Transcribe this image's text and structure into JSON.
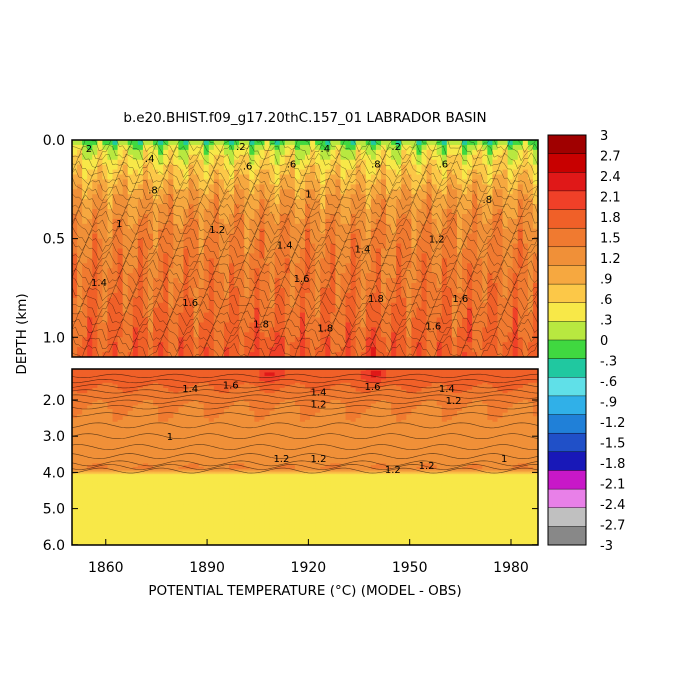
{
  "chart_data": {
    "type": "heatmap",
    "title": "b.e20.BHIST.f09_g17.20thC.157_01 LABRADOR BASIN",
    "xlabel": "POTENTIAL TEMPERATURE (°C) (MODEL - OBS)",
    "ylabel": "DEPTH (km)",
    "x_range": [
      1850,
      1988
    ],
    "x_ticks": [
      "1860",
      "1890",
      "1920",
      "1950",
      "1980"
    ],
    "x_tick_values": [
      1860,
      1890,
      1920,
      1950,
      1980
    ],
    "panels": [
      {
        "name": "upper",
        "y_range": [
          0.0,
          1.1
        ],
        "y_ticks": [
          "0.0",
          "0.5",
          "1.0"
        ],
        "y_tick_values": [
          0.0,
          0.5,
          1.0
        ]
      },
      {
        "name": "lower",
        "y_range": [
          1.1,
          6.0
        ],
        "y_ticks": [
          "2.0",
          "3.0",
          "4.0",
          "5.0",
          "6.0"
        ],
        "y_tick_values": [
          2.0,
          3.0,
          4.0,
          5.0,
          6.0
        ]
      }
    ],
    "colorbar": {
      "labels": [
        "3",
        "2.7",
        "2.4",
        "2.1",
        "1.8",
        "1.5",
        "1.2",
        ".9",
        ".6",
        ".3",
        "0",
        "-.3",
        "-.6",
        "-.9",
        "-1.2",
        "-1.5",
        "-1.8",
        "-2.1",
        "-2.4",
        "-2.7",
        "-3"
      ],
      "values": [
        3,
        2.7,
        2.4,
        2.1,
        1.8,
        1.5,
        1.2,
        0.9,
        0.6,
        0.3,
        0,
        -0.3,
        -0.6,
        -0.9,
        -1.2,
        -1.5,
        -1.8,
        -2.1,
        -2.4,
        -2.7,
        -3
      ],
      "colors": [
        "#a00000",
        "#c80000",
        "#e01818",
        "#f04028",
        "#f06028",
        "#f07a30",
        "#f09038",
        "#f6a840",
        "#fcc848",
        "#f8e848",
        "#b8e840",
        "#40d840",
        "#20c8a0",
        "#60e0e8",
        "#30b0e8",
        "#2080d8",
        "#2050c8",
        "#1818b8",
        "#c818c8",
        "#e880e8",
        "#c0c0c0",
        "#888888"
      ]
    },
    "depth_profile": {
      "depths": [
        0.0,
        0.05,
        0.15,
        0.3,
        0.5,
        0.8,
        1.05,
        1.2,
        1.5,
        1.8,
        2.2,
        3.0,
        3.6,
        3.9,
        4.05,
        5.4
      ],
      "values": [
        -0.5,
        0.0,
        0.4,
        0.9,
        1.2,
        1.4,
        1.6,
        1.7,
        1.6,
        1.4,
        1.2,
        1.0,
        1.0,
        1.2,
        0.2,
        0.2
      ]
    },
    "warm_events": [
      {
        "year": 1908,
        "depth": 1.25,
        "value": 2.1
      },
      {
        "year": 1940,
        "depth": 1.25,
        "value": 2.1
      }
    ],
    "contour_labels": [
      {
        "text": "2",
        "x": 1855,
        "y": 0.04
      },
      {
        "text": ".2",
        "x": 1900,
        "y": 0.03
      },
      {
        "text": ".4",
        "x": 1925,
        "y": 0.04
      },
      {
        "text": ".2",
        "x": 1946,
        "y": 0.03
      },
      {
        "text": ".4",
        "x": 1873,
        "y": 0.09
      },
      {
        "text": ".6",
        "x": 1902,
        "y": 0.13
      },
      {
        "text": ".6",
        "x": 1915,
        "y": 0.12
      },
      {
        "text": ".8",
        "x": 1940,
        "y": 0.12
      },
      {
        "text": ".6",
        "x": 1960,
        "y": 0.12
      },
      {
        "text": ".8",
        "x": 1874,
        "y": 0.25
      },
      {
        "text": "1",
        "x": 1920,
        "y": 0.27
      },
      {
        "text": ".8",
        "x": 1973,
        "y": 0.3
      },
      {
        "text": "1",
        "x": 1864,
        "y": 0.42
      },
      {
        "text": "1.2",
        "x": 1893,
        "y": 0.45
      },
      {
        "text": "1.4",
        "x": 1913,
        "y": 0.53
      },
      {
        "text": "1.4",
        "x": 1936,
        "y": 0.55
      },
      {
        "text": "1.2",
        "x": 1958,
        "y": 0.5
      },
      {
        "text": "1.4",
        "x": 1858,
        "y": 0.72
      },
      {
        "text": "1.6",
        "x": 1885,
        "y": 0.82
      },
      {
        "text": "1.6",
        "x": 1918,
        "y": 0.7
      },
      {
        "text": "1.8",
        "x": 1940,
        "y": 0.8
      },
      {
        "text": "1.6",
        "x": 1965,
        "y": 0.8
      },
      {
        "text": "1.8",
        "x": 1906,
        "y": 0.93
      },
      {
        "text": "1.8",
        "x": 1925,
        "y": 0.95
      },
      {
        "text": "1.6",
        "x": 1957,
        "y": 0.94
      },
      {
        "text": "1.4",
        "x": 1885,
        "y": 1.65
      },
      {
        "text": "1.6",
        "x": 1897,
        "y": 1.55
      },
      {
        "text": "1.4",
        "x": 1923,
        "y": 1.75
      },
      {
        "text": "1.6",
        "x": 1939,
        "y": 1.6
      },
      {
        "text": "1.4",
        "x": 1961,
        "y": 1.65
      },
      {
        "text": "1.2",
        "x": 1923,
        "y": 2.1
      },
      {
        "text": "1.2",
        "x": 1963,
        "y": 2.0
      },
      {
        "text": "1",
        "x": 1879,
        "y": 3.0
      },
      {
        "text": "1.2",
        "x": 1912,
        "y": 3.6
      },
      {
        "text": "1.2",
        "x": 1923,
        "y": 3.6
      },
      {
        "text": "1.2",
        "x": 1945,
        "y": 3.9
      },
      {
        "text": "1.2",
        "x": 1955,
        "y": 3.8
      },
      {
        "text": "1",
        "x": 1978,
        "y": 3.6
      }
    ]
  }
}
